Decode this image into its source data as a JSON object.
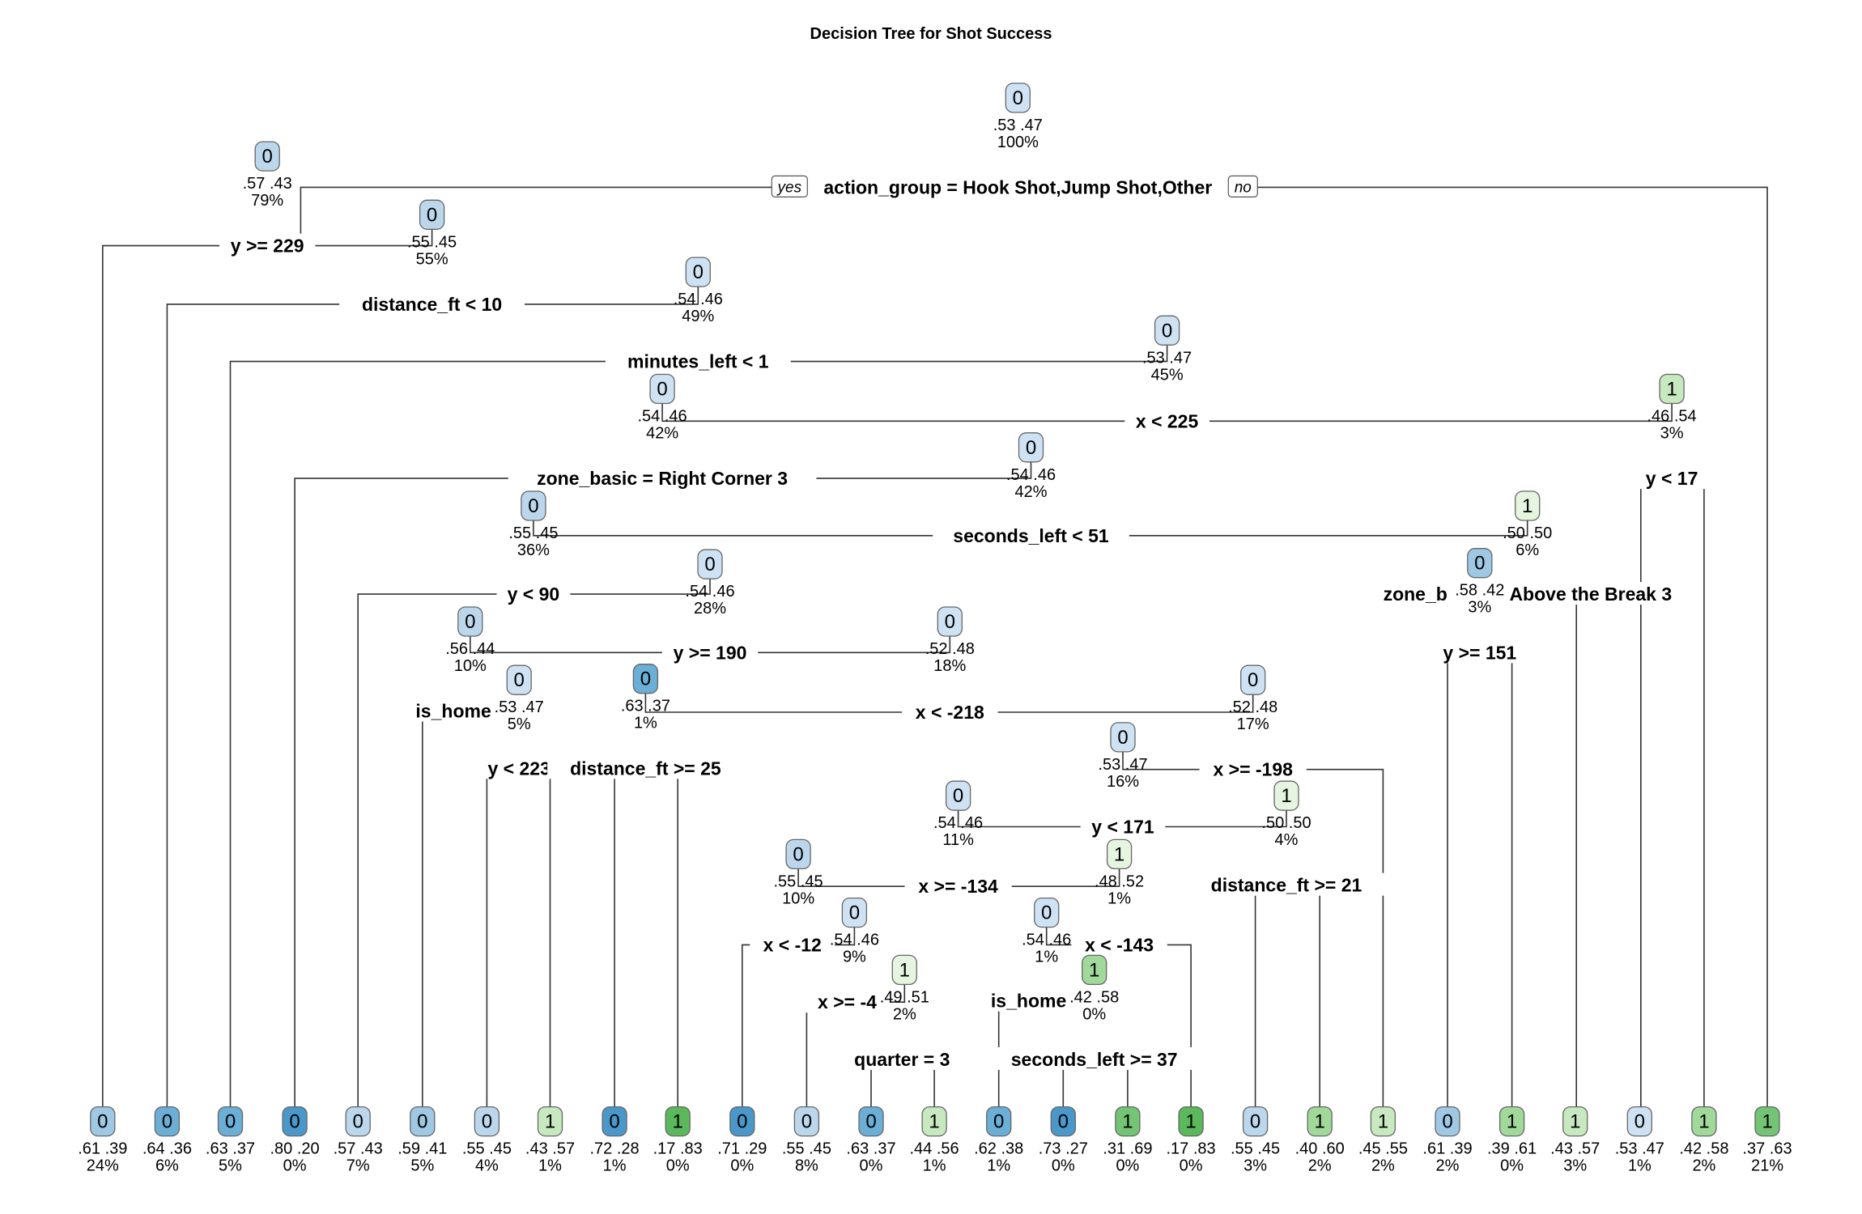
{
  "title": "Decision Tree for Shot Success",
  "labels": {
    "yes": "yes",
    "no": "no"
  },
  "colors": {
    "edge": "#333333",
    "class0": [
      "#cfe2f3",
      "#bcd7ec",
      "#9ec8e4",
      "#6baed6",
      "#4a98c9"
    ],
    "class1": [
      "#e5f5e0",
      "#c7e9c0",
      "#a1d99b",
      "#74c476",
      "#5bb85b"
    ]
  },
  "splits": [
    {
      "id": "s0",
      "label": "action_group = Hook Shot,Jump Shot,Other"
    },
    {
      "id": "s1",
      "label": "y >= 229"
    },
    {
      "id": "s2",
      "label": "distance_ft < 10"
    },
    {
      "id": "s3",
      "label": "minutes_left < 1"
    },
    {
      "id": "s4",
      "label": "x < 225"
    },
    {
      "id": "s5",
      "label": "zone_basic = Right Corner 3"
    },
    {
      "id": "s6",
      "label": "y < 17"
    },
    {
      "id": "s7",
      "label": "seconds_left < 51"
    },
    {
      "id": "s8",
      "label": "y < 90"
    },
    {
      "id": "s9a",
      "label": "zone_b"
    },
    {
      "id": "s9b",
      "label": "Above the Break 3"
    },
    {
      "id": "s10",
      "label": "y >= 190"
    },
    {
      "id": "s11",
      "label": "y >= 151"
    },
    {
      "id": "s12",
      "label": "is_home"
    },
    {
      "id": "s13",
      "label": "x < -218"
    },
    {
      "id": "s14",
      "label": "y < 223"
    },
    {
      "id": "s15",
      "label": "distance_ft >= 25"
    },
    {
      "id": "s16",
      "label": "x >= -198"
    },
    {
      "id": "s17",
      "label": "y < 171"
    },
    {
      "id": "s18",
      "label": "x >= -134"
    },
    {
      "id": "s19",
      "label": "distance_ft >= 21"
    },
    {
      "id": "s20",
      "label": "x < -12"
    },
    {
      "id": "s21",
      "label": "x < -143"
    },
    {
      "id": "s22",
      "label": "x >= -4"
    },
    {
      "id": "s23",
      "label": "is_home"
    },
    {
      "id": "s24",
      "label": "quarter = 3"
    },
    {
      "id": "s25",
      "label": "seconds_left >= 37"
    }
  ],
  "internal_nodes": [
    {
      "id": "n0",
      "cls": "0",
      "probs": ".53  .47",
      "pct": "100%"
    },
    {
      "id": "n1",
      "cls": "0",
      "probs": ".57  .43",
      "pct": "79%"
    },
    {
      "id": "n2",
      "cls": "0",
      "probs": ".55  .45",
      "pct": "55%"
    },
    {
      "id": "n3",
      "cls": "0",
      "probs": ".54  .46",
      "pct": "49%"
    },
    {
      "id": "n4",
      "cls": "0",
      "probs": ".53  .47",
      "pct": "45%"
    },
    {
      "id": "n5",
      "cls": "0",
      "probs": ".54  .46",
      "pct": "42%"
    },
    {
      "id": "n6",
      "cls": "1",
      "probs": ".46  .54",
      "pct": "3%"
    },
    {
      "id": "n7",
      "cls": "0",
      "probs": ".54  .46",
      "pct": "42%"
    },
    {
      "id": "n8",
      "cls": "0",
      "probs": ".55  .45",
      "pct": "36%"
    },
    {
      "id": "n9",
      "cls": "1",
      "probs": ".50  .50",
      "pct": "6%"
    },
    {
      "id": "n10",
      "cls": "0",
      "probs": ".54  .46",
      "pct": "28%"
    },
    {
      "id": "n11",
      "cls": "0",
      "probs": ".58  .42",
      "pct": "3%"
    },
    {
      "id": "n12",
      "cls": "0",
      "probs": ".56  .44",
      "pct": "10%"
    },
    {
      "id": "n13",
      "cls": "0",
      "probs": ".52  .48",
      "pct": "18%"
    },
    {
      "id": "n14",
      "cls": "0",
      "probs": ".53  .47",
      "pct": "5%"
    },
    {
      "id": "n15",
      "cls": "0",
      "probs": ".63  .37",
      "pct": "1%"
    },
    {
      "id": "n16",
      "cls": "0",
      "probs": ".52  .48",
      "pct": "17%"
    },
    {
      "id": "n17",
      "cls": "0",
      "probs": ".53  .47",
      "pct": "16%"
    },
    {
      "id": "n18",
      "cls": "0",
      "probs": ".54  .46",
      "pct": "11%"
    },
    {
      "id": "n19",
      "cls": "1",
      "probs": ".50  .50",
      "pct": "4%"
    },
    {
      "id": "n20",
      "cls": "0",
      "probs": ".55  .45",
      "pct": "10%"
    },
    {
      "id": "n21",
      "cls": "1",
      "probs": ".48  .52",
      "pct": "1%"
    },
    {
      "id": "n22",
      "cls": "0",
      "probs": ".54  .46",
      "pct": "9%"
    },
    {
      "id": "n23",
      "cls": "0",
      "probs": ".54  .46",
      "pct": "1%"
    },
    {
      "id": "n24",
      "cls": "1",
      "probs": ".49  .51",
      "pct": "2%"
    },
    {
      "id": "n25",
      "cls": "1",
      "probs": ".42  .58",
      "pct": "0%"
    }
  ],
  "leaves": [
    {
      "cls": "0",
      "probs": ".61  .39",
      "pct": "24%"
    },
    {
      "cls": "0",
      "probs": ".64  .36",
      "pct": "6%"
    },
    {
      "cls": "0",
      "probs": ".63  .37",
      "pct": "5%"
    },
    {
      "cls": "0",
      "probs": ".80  .20",
      "pct": "0%"
    },
    {
      "cls": "0",
      "probs": ".57  .43",
      "pct": "7%"
    },
    {
      "cls": "0",
      "probs": ".59  .41",
      "pct": "5%"
    },
    {
      "cls": "0",
      "probs": ".55  .45",
      "pct": "4%"
    },
    {
      "cls": "1",
      "probs": ".43  .57",
      "pct": "1%"
    },
    {
      "cls": "0",
      "probs": ".72  .28",
      "pct": "1%"
    },
    {
      "cls": "1",
      "probs": ".17  .83",
      "pct": "0%"
    },
    {
      "cls": "0",
      "probs": ".71  .29",
      "pct": "0%"
    },
    {
      "cls": "0",
      "probs": ".55  .45",
      "pct": "8%"
    },
    {
      "cls": "0",
      "probs": ".63  .37",
      "pct": "0%"
    },
    {
      "cls": "1",
      "probs": ".44  .56",
      "pct": "1%"
    },
    {
      "cls": "0",
      "probs": ".62  .38",
      "pct": "1%"
    },
    {
      "cls": "0",
      "probs": ".73  .27",
      "pct": "0%"
    },
    {
      "cls": "1",
      "probs": ".31  .69",
      "pct": "0%"
    },
    {
      "cls": "1",
      "probs": ".17  .83",
      "pct": "0%"
    },
    {
      "cls": "0",
      "probs": ".55  .45",
      "pct": "3%"
    },
    {
      "cls": "1",
      "probs": ".40  .60",
      "pct": "2%"
    },
    {
      "cls": "1",
      "probs": ".45  .55",
      "pct": "2%"
    },
    {
      "cls": "0",
      "probs": ".61  .39",
      "pct": "2%"
    },
    {
      "cls": "1",
      "probs": ".39  .61",
      "pct": "0%"
    },
    {
      "cls": "1",
      "probs": ".43  .57",
      "pct": "3%"
    },
    {
      "cls": "0",
      "probs": ".53  .47",
      "pct": "1%"
    },
    {
      "cls": "1",
      "probs": ".42  .58",
      "pct": "2%"
    },
    {
      "cls": "1",
      "probs": ".37  .63",
      "pct": "21%"
    }
  ]
}
